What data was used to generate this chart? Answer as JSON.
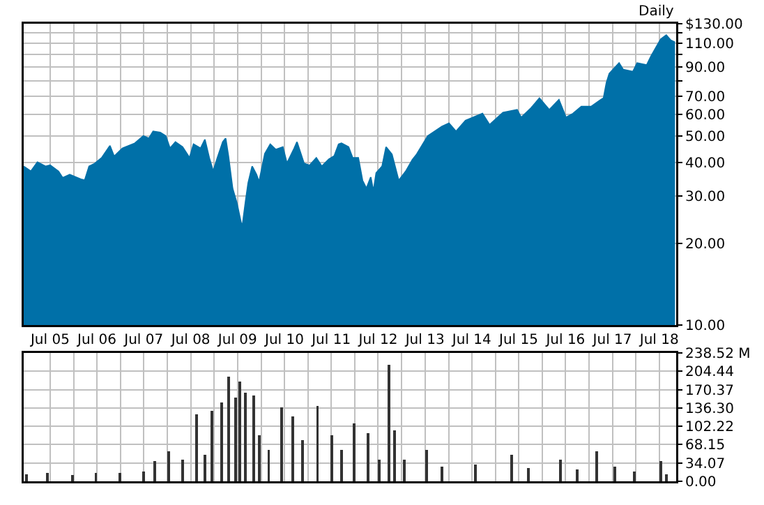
{
  "chart_data": [
    {
      "type": "area",
      "log": "y",
      "grid": true,
      "annotations": [
        "Daily"
      ],
      "x": [
        "2004-12-07",
        "2005-02-01",
        "2005-03-24",
        "2005-05-28",
        "2005-07-01",
        "2005-09-04",
        "2005-10-07",
        "2005-12-01",
        "2006-02-25",
        "2006-03-28",
        "2006-05-01",
        "2006-06-13",
        "2006-08-07",
        "2006-10-10",
        "2006-11-12",
        "2007-01-16",
        "2007-04-23",
        "2007-06-28",
        "2007-08-10",
        "2007-09-12",
        "2007-11-06",
        "2007-12-19",
        "2008-01-21",
        "2008-03-04",
        "2008-04-28",
        "2008-06-22",
        "2008-07-23",
        "2008-09-16",
        "2008-10-19",
        "2008-11-22",
        "2008-12-23",
        "2009-01-25",
        "2009-03-08",
        "2009-03-30",
        "2009-04-21",
        "2009-05-23",
        "2009-06-25",
        "2009-07-28",
        "2009-08-08",
        "2009-09-01",
        "2009-09-22",
        "2009-10-23",
        "2009-11-25",
        "2009-12-16",
        "2010-01-30",
        "2010-03-13",
        "2010-04-25",
        "2010-06-19",
        "2010-07-21",
        "2010-09-16",
        "2010-10-07",
        "2010-12-01",
        "2011-01-13",
        "2011-03-07",
        "2011-04-19",
        "2011-06-13",
        "2011-07-25",
        "2011-08-28",
        "2011-09-19",
        "2011-11-13",
        "2011-12-15",
        "2012-01-28",
        "2012-03-01",
        "2012-04-01",
        "2012-05-04",
        "2012-05-25",
        "2012-06-16",
        "2012-08-01",
        "2012-09-01",
        "2012-10-16",
        "2012-12-08",
        "2013-02-01",
        "2013-03-25",
        "2013-04-28",
        "2013-07-23",
        "2013-11-10",
        "2014-01-04",
        "2014-02-28",
        "2014-05-13",
        "2014-09-22",
        "2014-11-16",
        "2015-03-01",
        "2015-06-19",
        "2015-07-21",
        "2015-10-07",
        "2015-12-10",
        "2016-02-25",
        "2016-05-10",
        "2016-07-04",
        "2016-08-28",
        "2016-11-01",
        "2017-01-16",
        "2017-04-01",
        "2017-04-23",
        "2017-05-16",
        "2017-06-07",
        "2017-08-22",
        "2017-09-23",
        "2017-12-08",
        "2018-01-10",
        "2018-03-25",
        "2018-04-28",
        "2018-06-10",
        "2018-07-13",
        "2018-08-25",
        "2018-09-28",
        "2018-11-01"
      ],
      "xlim": [
        "2004-12-07",
        "2018-11-10"
      ],
      "xticks": [
        {
          "value": "2005-07-01",
          "label": "Jul 05"
        },
        {
          "value": "2006-01-01",
          "label": null
        },
        {
          "value": "2006-07-01",
          "label": "Jul 06"
        },
        {
          "value": "2007-01-01",
          "label": null
        },
        {
          "value": "2007-07-01",
          "label": "Jul 07"
        },
        {
          "value": "2008-01-01",
          "label": null
        },
        {
          "value": "2008-07-01",
          "label": "Jul 08"
        },
        {
          "value": "2009-01-01",
          "label": null
        },
        {
          "value": "2009-07-01",
          "label": "Jul 09"
        },
        {
          "value": "2010-01-01",
          "label": null
        },
        {
          "value": "2010-07-01",
          "label": "Jul 10"
        },
        {
          "value": "2011-01-01",
          "label": null
        },
        {
          "value": "2011-07-01",
          "label": "Jul 11"
        },
        {
          "value": "2012-01-01",
          "label": null
        },
        {
          "value": "2012-07-01",
          "label": "Jul 12"
        },
        {
          "value": "2013-01-01",
          "label": null
        },
        {
          "value": "2013-07-01",
          "label": "Jul 13"
        },
        {
          "value": "2014-01-01",
          "label": null
        },
        {
          "value": "2014-07-01",
          "label": "Jul 14"
        },
        {
          "value": "2015-01-01",
          "label": null
        },
        {
          "value": "2015-07-01",
          "label": "Jul 15"
        },
        {
          "value": "2016-01-01",
          "label": null
        },
        {
          "value": "2016-07-01",
          "label": "Jul 16"
        },
        {
          "value": "2017-01-01",
          "label": null
        },
        {
          "value": "2017-07-01",
          "label": "Jul 17"
        },
        {
          "value": "2018-01-01",
          "label": null
        },
        {
          "value": "2018-07-01",
          "label": "Jul 18"
        }
      ],
      "ylim": [
        10,
        130
      ],
      "yticks": [
        {
          "value": 10,
          "label": "10.00"
        },
        {
          "value": 20,
          "label": "20.00"
        },
        {
          "value": 30,
          "label": "30.00"
        },
        {
          "value": 40,
          "label": "40.00"
        },
        {
          "value": 50,
          "label": "50.00"
        },
        {
          "value": 60,
          "label": "60.00"
        },
        {
          "value": 70,
          "label": "70.00"
        },
        {
          "value": 80,
          "label": null
        },
        {
          "value": 90,
          "label": "90.00"
        },
        {
          "value": 100,
          "label": null
        },
        {
          "value": 110,
          "label": "110.00"
        },
        {
          "value": 120,
          "label": null
        },
        {
          "value": 130,
          "label": "$130.00"
        }
      ],
      "series": [
        {
          "color": "#0070a8",
          "values": [
            38.6,
            37,
            40,
            38.6,
            39,
            37,
            35,
            36,
            34.6,
            34.3,
            38.6,
            39.5,
            41.5,
            46,
            42,
            45,
            47,
            50,
            49,
            52,
            51.5,
            50,
            45,
            47.5,
            45.5,
            41.5,
            46.6,
            45,
            48.5,
            41.5,
            37,
            41.5,
            47.5,
            49,
            42,
            32,
            28.3,
            23.9,
            23.3,
            28.5,
            33.5,
            38.6,
            36,
            33.8,
            43,
            46.6,
            44.5,
            45.5,
            39.6,
            45,
            47.5,
            39.6,
            38.9,
            41.5,
            38.6,
            41,
            42.2,
            46.6,
            47,
            45.5,
            41.5,
            41.5,
            34.2,
            32,
            35.2,
            31.2,
            36.5,
            38.6,
            45.5,
            42.8,
            34.2,
            37,
            40.8,
            42.8,
            50,
            54.2,
            55.7,
            52,
            57,
            60.5,
            55,
            61,
            62.5,
            58.5,
            63.5,
            69,
            62.5,
            68,
            58.5,
            60.5,
            64.2,
            64.2,
            68,
            69,
            78.7,
            85,
            93,
            88,
            86.5,
            93,
            91.4,
            98.5,
            107,
            114,
            118,
            113,
            111
          ]
        }
      ]
    },
    {
      "type": "bar",
      "grid": true,
      "tick_labels": "y",
      "x": [
        "2004-12-28",
        "2005-06-08",
        "2005-12-22",
        "2006-06-23",
        "2006-12-25",
        "2007-06-28",
        "2007-09-23",
        "2008-01-10",
        "2008-04-28",
        "2008-08-16",
        "2008-10-19",
        "2008-12-13",
        "2009-02-27",
        "2009-04-21",
        "2009-06-16",
        "2009-07-19",
        "2009-09-01",
        "2009-11-04",
        "2009-12-16",
        "2010-03-01",
        "2010-06-08",
        "2010-09-04",
        "2010-11-19",
        "2011-03-16",
        "2011-07-04",
        "2011-09-19",
        "2011-12-25",
        "2012-04-13",
        "2012-07-08",
        "2012-09-23",
        "2012-11-07",
        "2013-01-22",
        "2013-07-13",
        "2013-11-10",
        "2014-07-28",
        "2015-05-07",
        "2015-09-16",
        "2016-05-22",
        "2016-10-01",
        "2017-03-01",
        "2017-07-19",
        "2017-12-19",
        "2018-07-13",
        "2018-08-25"
      ],
      "xlim": [
        "2004-12-07",
        "2018-11-10"
      ],
      "xticks": [
        {
          "value": "2005-07-01",
          "label": null
        },
        {
          "value": "2006-01-01",
          "label": null
        },
        {
          "value": "2006-07-01",
          "label": null
        },
        {
          "value": "2007-01-01",
          "label": null
        },
        {
          "value": "2007-07-01",
          "label": null
        },
        {
          "value": "2008-01-01",
          "label": null
        },
        {
          "value": "2008-07-01",
          "label": null
        },
        {
          "value": "2009-01-01",
          "label": null
        },
        {
          "value": "2009-07-01",
          "label": null
        },
        {
          "value": "2010-01-01",
          "label": null
        },
        {
          "value": "2010-07-01",
          "label": null
        },
        {
          "value": "2011-01-01",
          "label": null
        },
        {
          "value": "2011-07-01",
          "label": null
        },
        {
          "value": "2012-01-01",
          "label": null
        },
        {
          "value": "2012-07-01",
          "label": null
        },
        {
          "value": "2013-01-01",
          "label": null
        },
        {
          "value": "2013-07-01",
          "label": null
        },
        {
          "value": "2014-01-01",
          "label": null
        },
        {
          "value": "2014-07-01",
          "label": null
        },
        {
          "value": "2015-01-01",
          "label": null
        },
        {
          "value": "2015-07-01",
          "label": null
        },
        {
          "value": "2016-01-01",
          "label": null
        },
        {
          "value": "2016-07-01",
          "label": null
        },
        {
          "value": "2017-01-01",
          "label": null
        },
        {
          "value": "2017-07-01",
          "label": null
        },
        {
          "value": "2018-01-01",
          "label": null
        },
        {
          "value": "2018-07-01",
          "label": null
        }
      ],
      "ylim": [
        0,
        238.52
      ],
      "yticks": [
        {
          "value": 0,
          "label": "0.00"
        },
        34.07,
        68.15,
        102.22,
        {
          "value": 136.3,
          "label": "136.30"
        },
        170.37,
        204.44,
        {
          "value": 238.52,
          "label": "238.52 M"
        }
      ],
      "series": [
        {
          "color": "#333333",
          "values": [
            13,
            15,
            12,
            15,
            15,
            18,
            38,
            56,
            40,
            125,
            49,
            131,
            147,
            194,
            156,
            186,
            165,
            159,
            85,
            58,
            138,
            121,
            76,
            140,
            85,
            58,
            107,
            89,
            40,
            217,
            94,
            40,
            58,
            27,
            31,
            49,
            24,
            40,
            22,
            56,
            27,
            18,
            38,
            13
          ]
        }
      ]
    }
  ]
}
